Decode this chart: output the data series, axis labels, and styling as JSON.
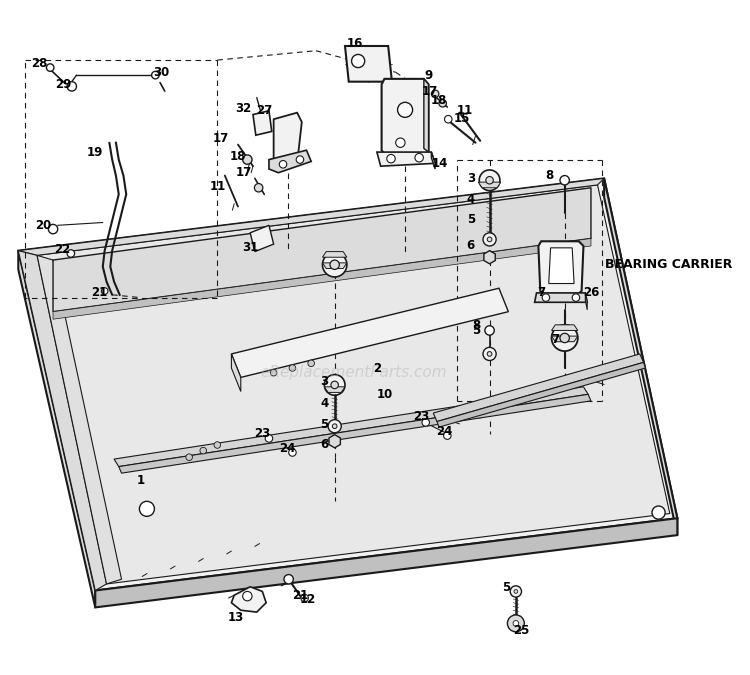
{
  "bg_color": "#ffffff",
  "watermark": "eReplacementParts.com",
  "watermark_color": "#b0b0b0",
  "watermark_alpha": 0.45,
  "bearing_carrier_label": "BEARING CARRIER",
  "line_color": "#1a1a1a",
  "face_light": "#f2f2f2",
  "face_mid": "#dcdcdc",
  "face_dark": "#c0c0c0",
  "face_inner": "#e8e8e8"
}
